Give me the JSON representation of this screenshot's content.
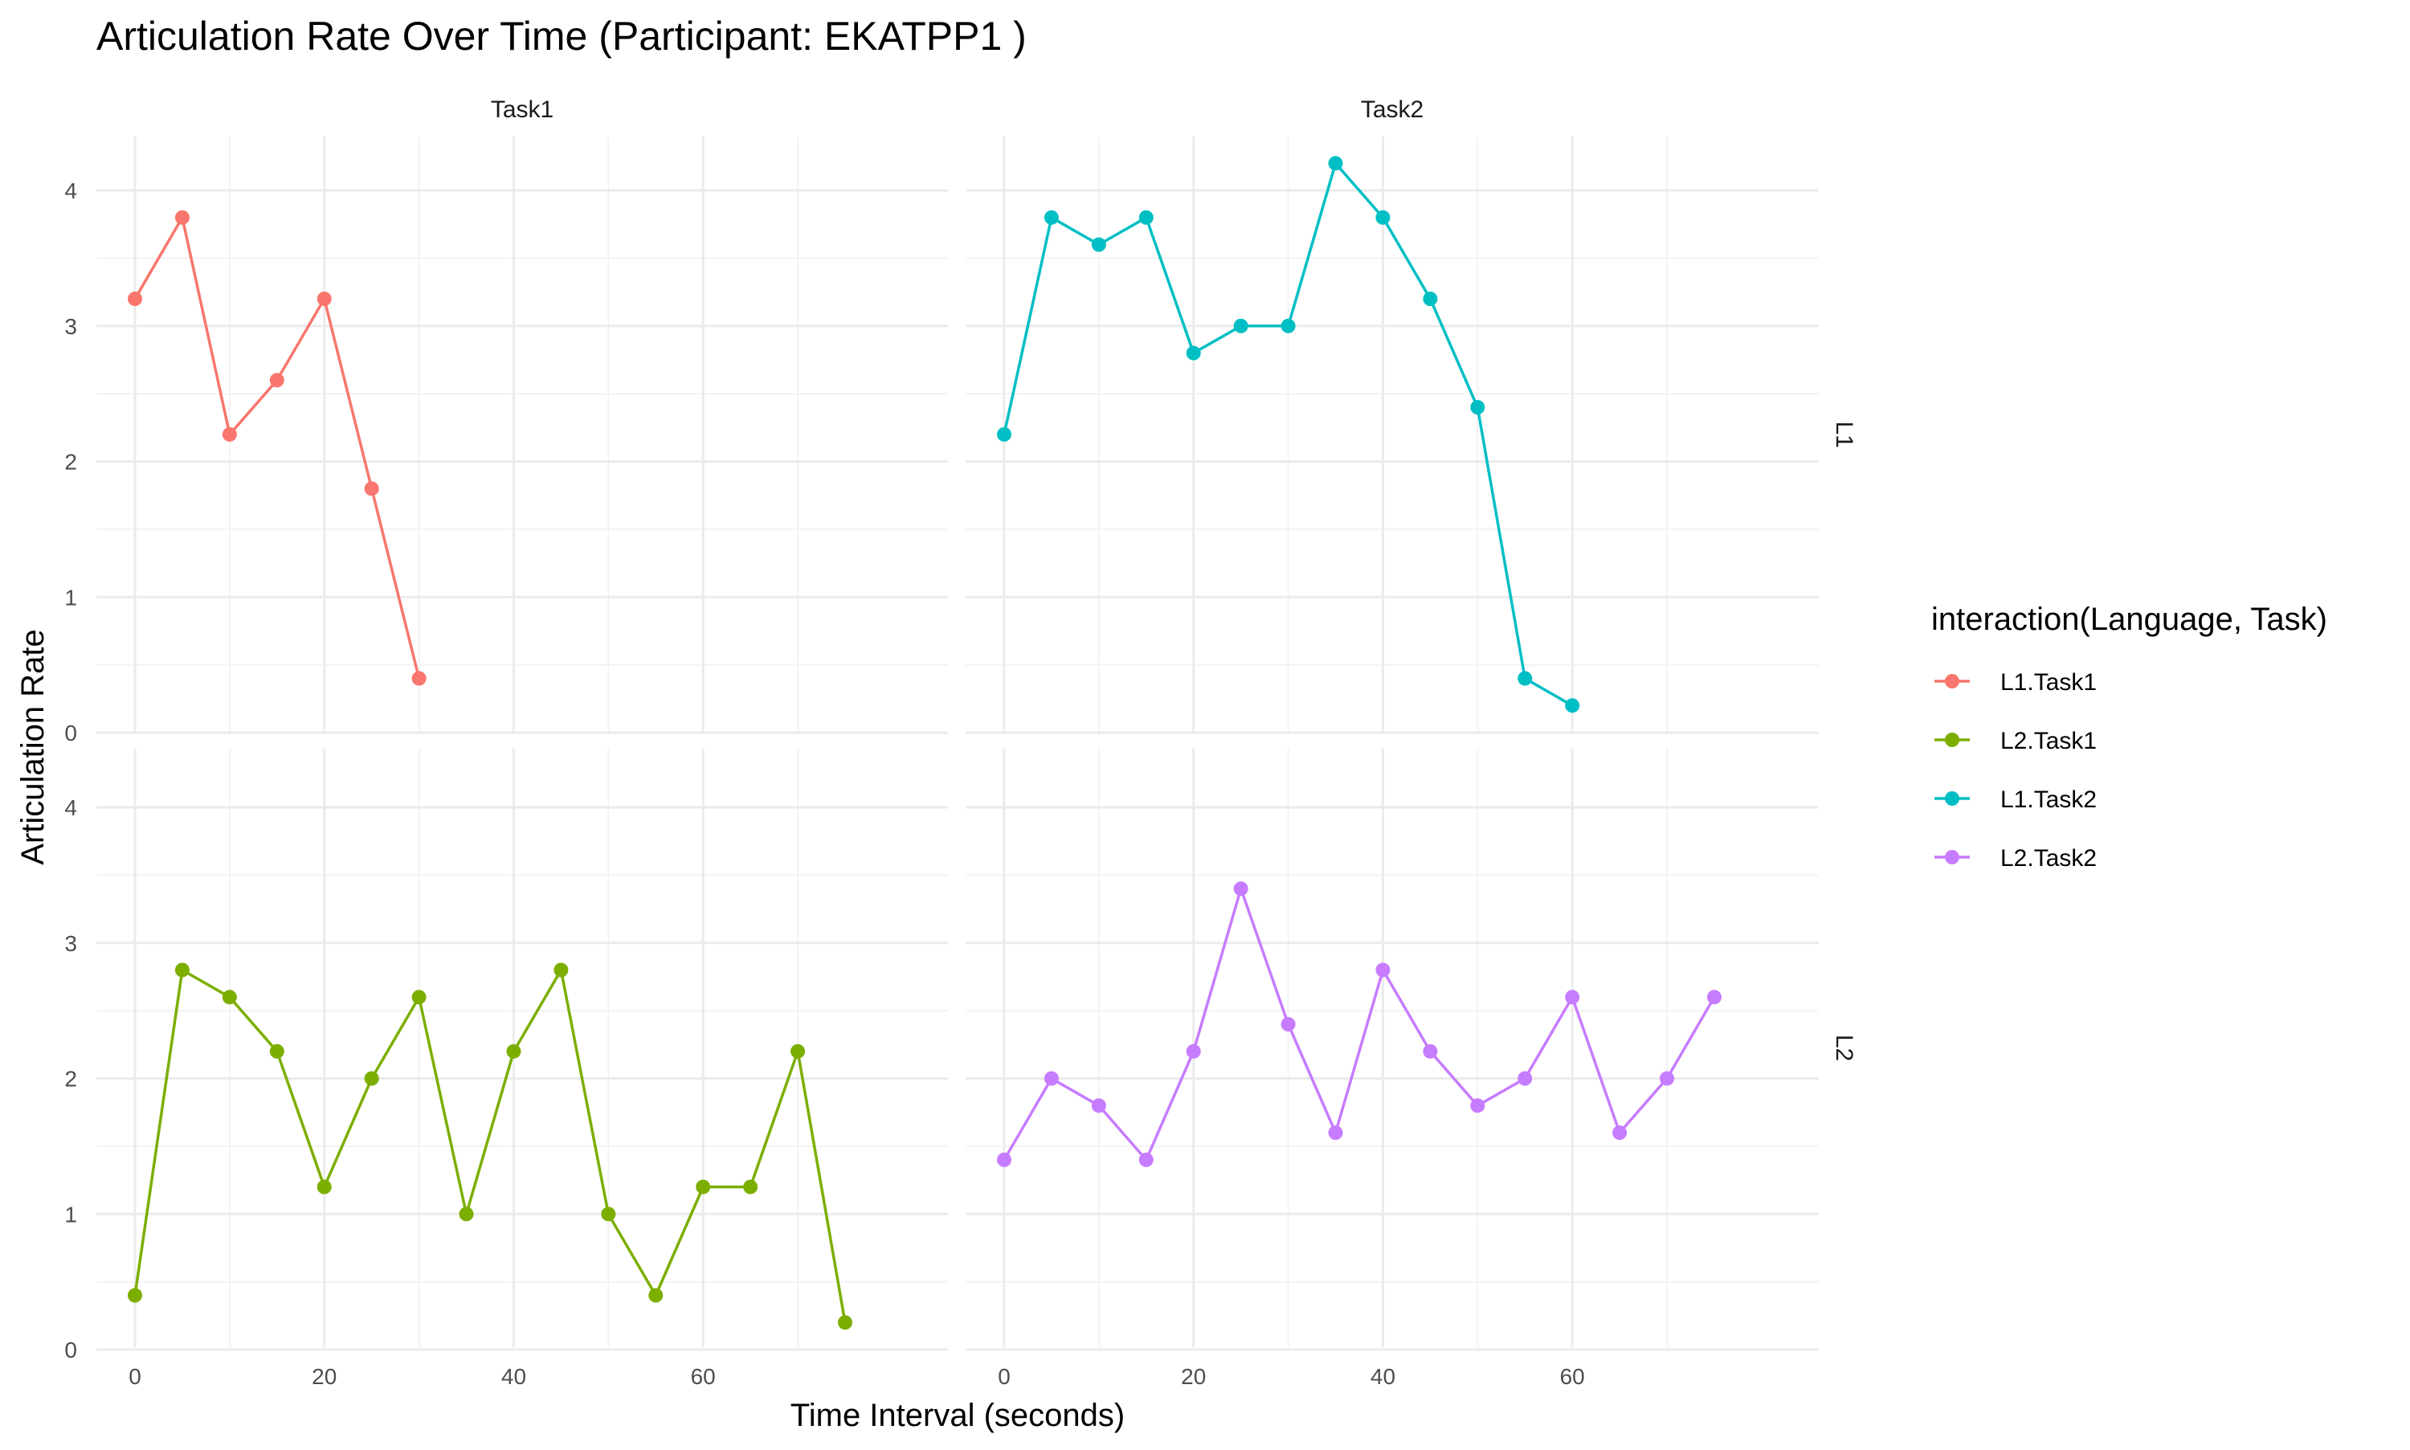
{
  "colors": {
    "L1.Task1": "#F8766D",
    "L2.Task1": "#7CAE00",
    "L1.Task2": "#00BFC4",
    "L2.Task2": "#C77CFF"
  },
  "chart_data": {
    "type": "line",
    "title": "Articulation Rate Over Time (Participant: EKATPP1 )",
    "xlabel": "Time Interval (seconds)",
    "ylabel": "Articulation Rate",
    "xlim": [
      -2,
      78
    ],
    "ylim": [
      0,
      4.2
    ],
    "x_ticks": [
      0,
      20,
      40,
      60
    ],
    "y_ticks": [
      0,
      1,
      2,
      3,
      4
    ],
    "grid": true,
    "facet_columns": [
      "Task1",
      "Task2"
    ],
    "facet_rows": [
      "L1",
      "L2"
    ],
    "legend": {
      "title": "interaction(Language, Task)",
      "position": "right",
      "entries": [
        "L1.Task1",
        "L2.Task1",
        "L1.Task2",
        "L2.Task2"
      ]
    },
    "series": [
      {
        "name": "L1.Task1",
        "facet_row": "L1",
        "facet_col": "Task1",
        "x": [
          0,
          5,
          10,
          15,
          20,
          25,
          30
        ],
        "y": [
          3.2,
          3.8,
          2.2,
          2.6,
          3.2,
          1.8,
          0.4
        ]
      },
      {
        "name": "L1.Task2",
        "facet_row": "L1",
        "facet_col": "Task2",
        "x": [
          0,
          5,
          10,
          15,
          20,
          25,
          30,
          35,
          40,
          45,
          50,
          55,
          60
        ],
        "y": [
          2.2,
          3.8,
          3.6,
          3.8,
          2.8,
          3.0,
          3.0,
          4.2,
          3.8,
          3.2,
          2.4,
          0.4,
          0.2
        ]
      },
      {
        "name": "L2.Task1",
        "facet_row": "L2",
        "facet_col": "Task1",
        "x": [
          0,
          5,
          10,
          15,
          20,
          25,
          30,
          35,
          40,
          45,
          50,
          55,
          60,
          65,
          70,
          75
        ],
        "y": [
          0.4,
          2.8,
          2.6,
          2.2,
          1.2,
          2.0,
          2.6,
          1.0,
          2.2,
          2.8,
          1.0,
          0.4,
          1.2,
          1.2,
          2.2,
          0.2
        ]
      },
      {
        "name": "L2.Task2",
        "facet_row": "L2",
        "facet_col": "Task2",
        "x": [
          0,
          5,
          10,
          15,
          20,
          25,
          30,
          35,
          40,
          45,
          50,
          55,
          60,
          65,
          70,
          75
        ],
        "y": [
          1.4,
          2.0,
          1.8,
          1.4,
          2.2,
          3.4,
          2.4,
          1.6,
          2.8,
          2.2,
          1.8,
          2.0,
          2.6,
          1.6,
          2.0,
          2.6
        ]
      }
    ]
  }
}
